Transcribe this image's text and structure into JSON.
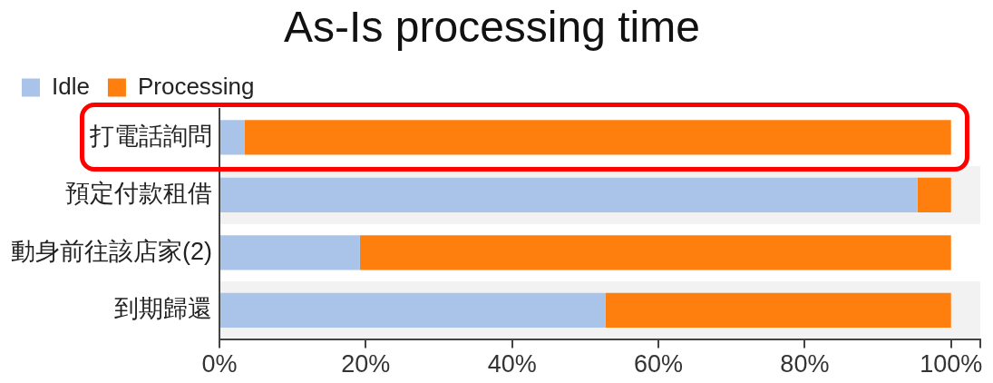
{
  "chart_data": {
    "type": "bar",
    "orientation": "horizontal",
    "stacked": true,
    "title": "As-Is processing time",
    "categories": [
      "打電話詢問",
      "預定付款租借",
      "動身前往該店家(2)",
      "到期歸還"
    ],
    "series": [
      {
        "name": "Idle",
        "color": "#a9c4e8",
        "values": [
          3.4,
          95.4,
          19.2,
          52.8
        ]
      },
      {
        "name": "Processing",
        "color": "#ff7f0e",
        "values": [
          96.6,
          4.6,
          80.8,
          47.2
        ]
      }
    ],
    "xlim": [
      0,
      104
    ],
    "xticks": [
      {
        "value": 0,
        "label": "0%"
      },
      {
        "value": 20,
        "label": "20%"
      },
      {
        "value": 40,
        "label": "40%"
      },
      {
        "value": 60,
        "label": "60%"
      },
      {
        "value": 80,
        "label": "80%"
      },
      {
        "value": 100,
        "label": "100%"
      },
      {
        "value": 104,
        "label": null
      }
    ],
    "grid": false,
    "legend": "top left"
  }
}
